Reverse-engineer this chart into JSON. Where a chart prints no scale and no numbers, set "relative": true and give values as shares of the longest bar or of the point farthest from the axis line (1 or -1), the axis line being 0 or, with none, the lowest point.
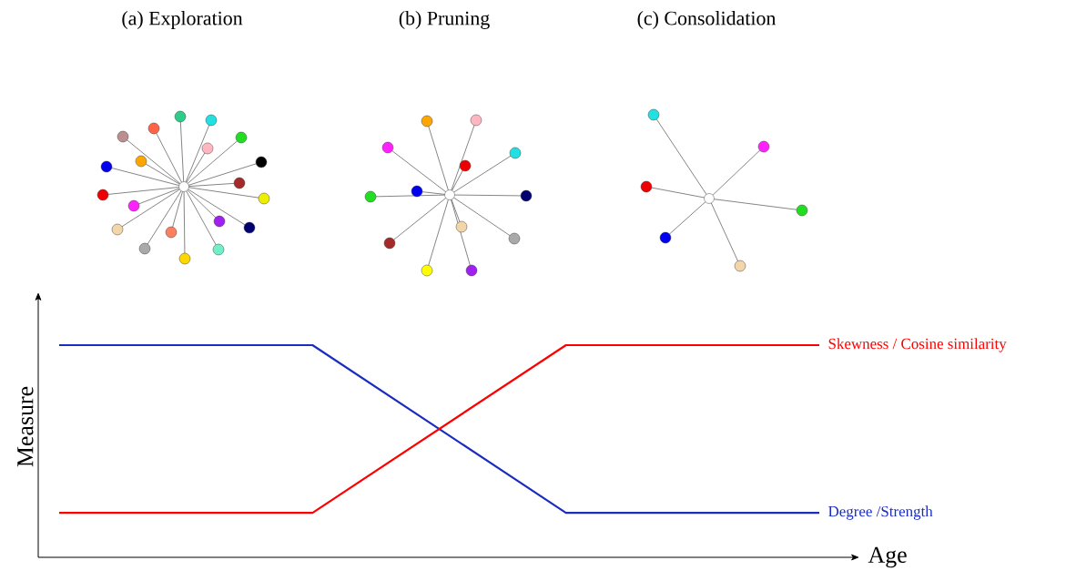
{
  "chart_data": {
    "type": "line",
    "relative": true,
    "xlabel": "Age",
    "ylabel": "Measure",
    "categories": [
      null,
      null,
      null,
      null
    ],
    "series": [
      {
        "name": "Degree /Strength",
        "color": "#1a2dbf",
        "values": [
          1,
          1,
          0.21,
          0.21
        ]
      },
      {
        "name": "Skewness / Cosine similarity",
        "color": "#ff0000",
        "values": [
          0.21,
          0.21,
          1,
          1
        ]
      }
    ],
    "annotations": [
      "(a) Exploration",
      "(b) Pruning",
      "(c) Consolidation"
    ]
  }
}
